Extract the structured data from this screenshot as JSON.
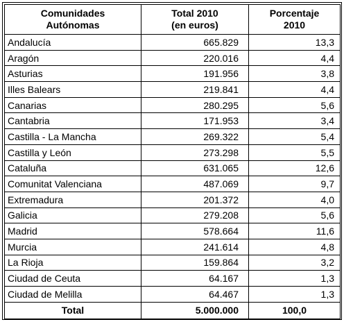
{
  "headers": {
    "region": [
      "Comunidades",
      "Autónomas"
    ],
    "total": [
      "Total 2010",
      "(en euros)"
    ],
    "percent": [
      "Porcentaje",
      "2010"
    ]
  },
  "rows": [
    {
      "name": "Andalucía",
      "total": "665.829",
      "percent": "13,3"
    },
    {
      "name": "Aragón",
      "total": "220.016",
      "percent": "4,4"
    },
    {
      "name": "Asturias",
      "total": "191.956",
      "percent": "3,8"
    },
    {
      "name": "Illes Balears",
      "total": "219.841",
      "percent": "4,4"
    },
    {
      "name": "Canarias",
      "total": "280.295",
      "percent": "5,6"
    },
    {
      "name": "Cantabria",
      "total": "171.953",
      "percent": "3,4"
    },
    {
      "name": "Castilla - La Mancha",
      "total": "269.322",
      "percent": "5,4"
    },
    {
      "name": "Castilla y León",
      "total": "273.298",
      "percent": "5,5"
    },
    {
      "name": "Cataluña",
      "total": "631.065",
      "percent": "12,6"
    },
    {
      "name": "Comunitat Valenciana",
      "total": "487.069",
      "percent": "9,7"
    },
    {
      "name": "Extremadura",
      "total": "201.372",
      "percent": "4,0"
    },
    {
      "name": "Galicia",
      "total": "279.208",
      "percent": "5,6"
    },
    {
      "name": "Madrid",
      "total": "578.664",
      "percent": "11,6"
    },
    {
      "name": "Murcia",
      "total": "241.614",
      "percent": "4,8"
    },
    {
      "name": "La Rioja",
      "total": "159.864",
      "percent": "3,2"
    },
    {
      "name": "Ciudad de Ceuta",
      "total": "64.167",
      "percent": "1,3"
    },
    {
      "name": "Ciudad de Melilla",
      "total": "64.467",
      "percent": "1,3"
    }
  ],
  "footer": {
    "label": "Total",
    "total": "5.000.000",
    "percent": "100,0"
  }
}
